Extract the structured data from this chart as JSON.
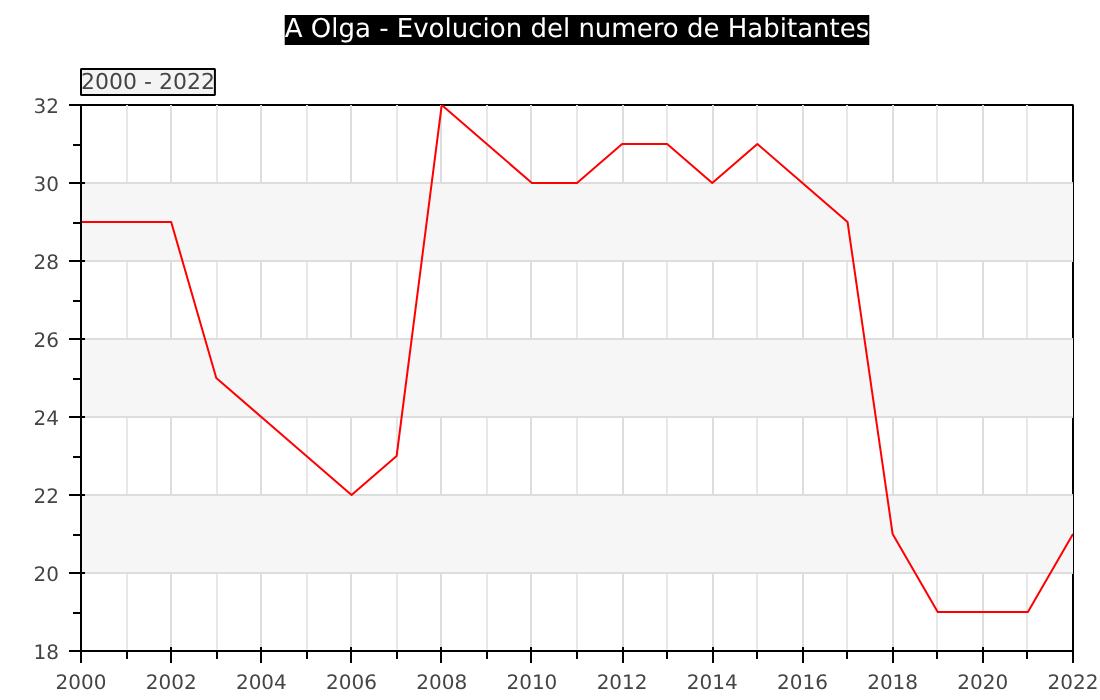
{
  "chart_data": {
    "type": "line",
    "title": "A Olga - Evolucion del numero de Habitantes",
    "annotations": [
      "2000 - 2022"
    ],
    "x": [
      2000,
      2001,
      2002,
      2003,
      2004,
      2005,
      2006,
      2007,
      2008,
      2009,
      2010,
      2011,
      2012,
      2013,
      2014,
      2015,
      2016,
      2017,
      2018,
      2019,
      2020,
      2021,
      2022
    ],
    "series": [
      {
        "color": "#ff0000",
        "values": [
          29,
          29,
          29,
          25,
          24,
          23,
          22,
          23,
          32,
          31,
          30,
          30,
          31,
          31,
          30,
          31,
          30,
          29,
          21,
          19,
          19,
          19,
          21
        ]
      }
    ],
    "xlim": [
      2000,
      2022
    ],
    "xticks": [
      2000,
      2002,
      2004,
      2006,
      2008,
      2010,
      2012,
      2014,
      2016,
      2018,
      2020,
      2022
    ],
    "ylim": [
      18,
      32
    ],
    "yticks": [
      18,
      20,
      22,
      24,
      26,
      28,
      30,
      32
    ],
    "grid": true,
    "marker": "none",
    "line_style": "solid"
  }
}
